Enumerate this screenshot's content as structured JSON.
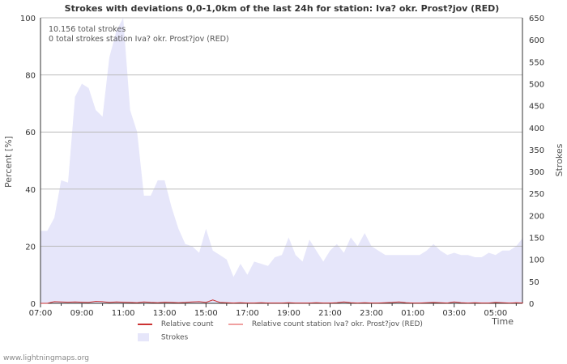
{
  "chart_data": {
    "type": "area",
    "title": "Strokes with deviations 0,0-1,0km of the last 24h for station: Iva? okr. Prost?jov (RED)",
    "info_lines": [
      "10.156 total strokes",
      "0 total strokes station Iva? okr. Prost?jov (RED)"
    ],
    "xlabel": "Time",
    "ylabel_left": "Percent   [%]",
    "ylabel_right": "Strokes",
    "x_ticks": [
      "07:00",
      "09:00",
      "11:00",
      "13:00",
      "15:00",
      "17:00",
      "19:00",
      "21:00",
      "23:00",
      "01:00",
      "03:00",
      "05:00"
    ],
    "ylim_left": [
      0,
      100
    ],
    "yticks_left": [
      0,
      20,
      40,
      60,
      80,
      100
    ],
    "ylim_right": [
      0,
      650
    ],
    "yticks_right": [
      0,
      50,
      100,
      150,
      200,
      250,
      300,
      350,
      400,
      450,
      500,
      550,
      600,
      650
    ],
    "x_hours": [
      0,
      0.33,
      0.67,
      1,
      1.33,
      1.67,
      2,
      2.33,
      2.67,
      3,
      3.33,
      3.67,
      4,
      4.33,
      4.67,
      5,
      5.33,
      5.67,
      6,
      6.33,
      6.67,
      7,
      7.33,
      7.67,
      8,
      8.33,
      8.67,
      9,
      9.33,
      9.67,
      10,
      10.33,
      10.67,
      11,
      11.33,
      11.67,
      12,
      12.33,
      12.67,
      13,
      13.33,
      13.67,
      14,
      14.33,
      14.67,
      15,
      15.33,
      15.67,
      16,
      16.33,
      16.67,
      17,
      17.33,
      17.67,
      18,
      18.33,
      18.67,
      19,
      19.33,
      19.67,
      20,
      20.33,
      20.67,
      21,
      21.33,
      21.67,
      22,
      22.33,
      22.67,
      23,
      23.33
    ],
    "series": [
      {
        "name": "Strokes",
        "axis": "right",
        "color": "#e6e6fa",
        "values": [
          165,
          165,
          195,
          280,
          275,
          470,
          500,
          490,
          440,
          425,
          560,
          620,
          675,
          440,
          390,
          245,
          245,
          280,
          280,
          220,
          170,
          135,
          130,
          115,
          170,
          120,
          110,
          100,
          60,
          90,
          65,
          95,
          90,
          85,
          105,
          110,
          150,
          110,
          95,
          145,
          120,
          95,
          120,
          135,
          115,
          150,
          130,
          160,
          130,
          120,
          110,
          110,
          110,
          110,
          110,
          110,
          120,
          135,
          120,
          110,
          115,
          110,
          110,
          105,
          105,
          115,
          110,
          120,
          120,
          130,
          150
        ]
      },
      {
        "name": "Relative count",
        "axis": "left",
        "color": "#cc3333",
        "values": [
          0,
          0,
          0.6,
          0.5,
          0.4,
          0.5,
          0.4,
          0.3,
          0.7,
          0.6,
          0.3,
          0.5,
          0.4,
          0.3,
          0.2,
          0.5,
          0.3,
          0.2,
          0.4,
          0.3,
          0.2,
          0.3,
          0.5,
          0.6,
          0.3,
          1.2,
          0.3,
          0.2,
          0.1,
          0.2,
          0.1,
          0.1,
          0.2,
          0.1,
          0.1,
          0.1,
          0.2,
          0.1,
          0.1,
          0.1,
          0.2,
          0.1,
          0.1,
          0.2,
          0.5,
          0.2,
          0.1,
          0.2,
          0.1,
          0.1,
          0.2,
          0.3,
          0.5,
          0.2,
          0.1,
          0.1,
          0.2,
          0.3,
          0.2,
          0.1,
          0.5,
          0.2,
          0.1,
          0.2,
          0.1,
          0.1,
          0.3,
          0.2,
          0.1,
          0.2,
          0.1
        ]
      },
      {
        "name": "Relative count station Iva? okr. Prost?jov (RED)",
        "axis": "left",
        "color": "#f0a0a0",
        "values": []
      }
    ]
  },
  "legend": {
    "relative_count": "Relative count",
    "relative_count_station": "Relative count station Iva? okr. Prost?jov (RED)",
    "strokes": "Strokes"
  },
  "footer": "www.lightningmaps.org"
}
